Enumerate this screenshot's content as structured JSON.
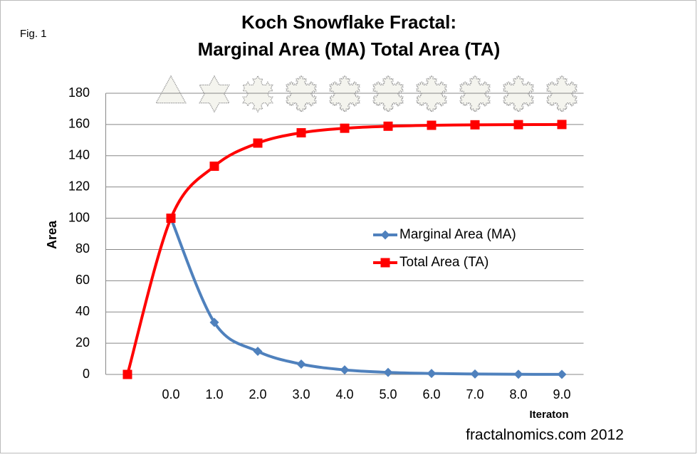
{
  "chart_data": {
    "type": "line",
    "note": "Fig. 1",
    "title": [
      "Koch Snowflake Fractal:",
      "Marginal Area (MA) Total Area (TA)"
    ],
    "y_label": "Area",
    "x_label": "Iteraton",
    "source": "fractalnomics.com 2012",
    "categories": [
      null,
      "0.0",
      "1.0",
      "2.0",
      "3.0",
      "4.0",
      "5.0",
      "6.0",
      "7.0",
      "8.0",
      "9.0"
    ],
    "series": [
      {
        "name": "Marginal Area (MA)",
        "color": "#4f81bd",
        "marker": "diamond",
        "values": [
          null,
          100,
          33.3,
          14.8,
          6.6,
          2.9,
          1.3,
          0.6,
          0.3,
          0.1,
          0.05
        ]
      },
      {
        "name": "Total Area (TA)",
        "color": "#ff0000",
        "marker": "square",
        "values": [
          0,
          100,
          133.3,
          148.1,
          154.7,
          157.6,
          158.9,
          159.5,
          159.8,
          159.9,
          160
        ]
      }
    ],
    "ylim": [
      0,
      180
    ],
    "yticks": [
      0,
      20,
      40,
      60,
      80,
      100,
      120,
      140,
      160,
      180
    ],
    "grid": true,
    "smooth": true,
    "legend": "center"
  }
}
